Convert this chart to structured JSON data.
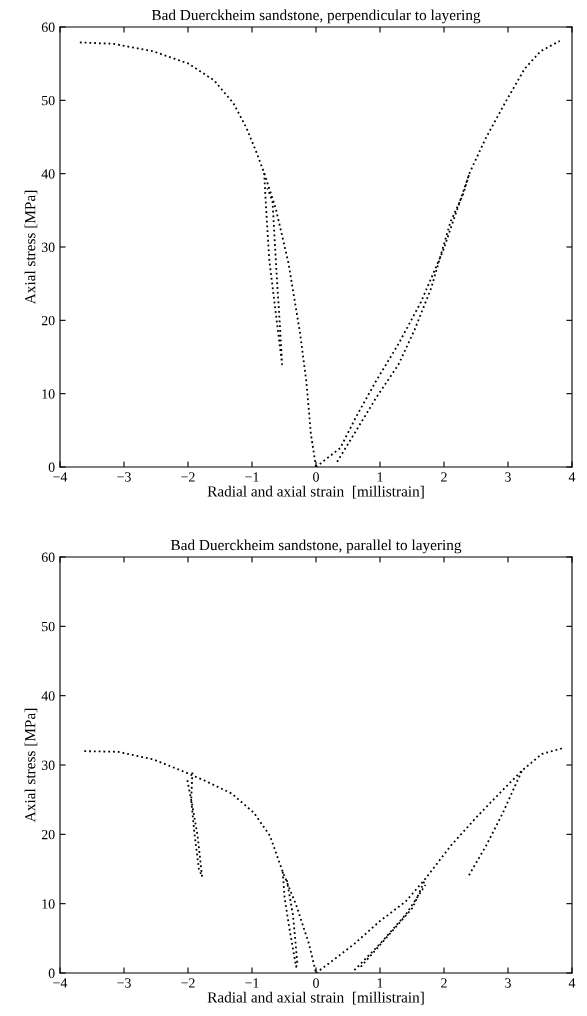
{
  "chart_data": [
    {
      "type": "line",
      "title": "Bad Duerckheim sandstone, perpendicular to layering",
      "xlabel": "Radial and axial strain  [millistrain]",
      "ylabel": "Axial stress [MPa]",
      "line_style": "dotted",
      "marker": "none",
      "grid": false,
      "legend": false,
      "xlim": [
        -4,
        4
      ],
      "ylim": [
        0,
        60
      ],
      "xticks": [
        {
          "value": -4,
          "label": "−4"
        },
        {
          "value": -3,
          "label": "−3"
        },
        {
          "value": -2,
          "label": "−2"
        },
        {
          "value": -1,
          "label": "−1"
        },
        0,
        1,
        2,
        3,
        4
      ],
      "yticks": [
        0,
        10,
        20,
        30,
        40,
        50,
        60
      ],
      "series": [
        {
          "color": "#000000",
          "x": [
            -3.69,
            -3.16,
            -2.55,
            -1.99,
            -1.59,
            -1.29,
            -1.09,
            -0.93,
            -0.81,
            -0.63,
            -0.43,
            -0.25,
            -0.15,
            -0.08,
            0
          ],
          "values": [
            57.9,
            57.7,
            56.7,
            55.0,
            52.7,
            49.6,
            46.3,
            42.9,
            40.1,
            35.3,
            27.8,
            18.3,
            11.6,
            4.5,
            0
          ]
        },
        {
          "color": "#000000",
          "x": [
            -0.81,
            -0.78,
            -0.73,
            -0.63,
            -0.53,
            -0.56,
            -0.62,
            -0.68,
            -0.76
          ],
          "values": [
            40.1,
            35.3,
            28.2,
            21.1,
            14.0,
            18.7,
            27.0,
            36.3,
            38.0
          ]
        },
        {
          "color": "#000000",
          "x": [
            0,
            0.38,
            0.63,
            0.93,
            1.29,
            1.64,
            1.99,
            2.4,
            2.65,
            2.95,
            3.26,
            3.51,
            3.81
          ],
          "values": [
            0,
            2.6,
            6.9,
            11.6,
            16.8,
            22.5,
            29.6,
            40.1,
            44.8,
            49.6,
            54.3,
            56.7,
            58.1
          ]
        },
        {
          "color": "#000000",
          "x": [
            0.33,
            0.63,
            0.93,
            1.29,
            1.54,
            1.8,
            2.1,
            2.3,
            2.4
          ],
          "values": [
            0.7,
            5.0,
            9.3,
            14.0,
            18.7,
            24.4,
            33.4,
            37.2,
            40.1
          ]
        }
      ]
    },
    {
      "type": "line",
      "title": "Bad Duerckheim sandstone, parallel to layering",
      "xlabel": "Radial and axial strain  [millistrain]",
      "ylabel": "Axial stress [MPa]",
      "line_style": "dotted",
      "marker": "none",
      "grid": false,
      "legend": false,
      "xlim": [
        -4,
        4
      ],
      "ylim": [
        0,
        60
      ],
      "xticks": [
        {
          "value": -4,
          "label": "−4"
        },
        {
          "value": -3,
          "label": "−3"
        },
        {
          "value": -2,
          "label": "−2"
        },
        {
          "value": -1,
          "label": "−1"
        },
        0,
        1,
        2,
        3,
        4
      ],
      "yticks": [
        0,
        10,
        20,
        30,
        40,
        50,
        60
      ],
      "series": [
        {
          "color": "#000000",
          "x": [
            -3.62,
            -3.09,
            -2.54,
            -2.08,
            -1.73,
            -1.32,
            -0.97,
            -0.72,
            -0.52,
            -0.31,
            -0.11,
            0
          ],
          "values": [
            32.0,
            31.9,
            30.8,
            29.1,
            27.7,
            25.9,
            23.1,
            19.8,
            14.6,
            9.8,
            4.2,
            0
          ]
        },
        {
          "color": "#000000",
          "x": [
            -2.01,
            -1.93,
            -1.85,
            -1.78,
            -1.83,
            -1.9,
            -1.95,
            -1.93
          ],
          "values": [
            27.8,
            24.0,
            19.8,
            13.9,
            15.0,
            20.2,
            24.9,
            29.3
          ]
        },
        {
          "color": "#000000",
          "x": [
            -0.52,
            -0.49,
            -0.41,
            -0.31,
            -0.29,
            -0.36,
            -0.46
          ],
          "values": [
            14.6,
            10.8,
            6.1,
            0.9,
            1.3,
            8.4,
            13.6
          ]
        },
        {
          "color": "#000000",
          "x": [
            0,
            0.19,
            0.6,
            1.0,
            1.4,
            1.71,
            2.11,
            2.52,
            2.92,
            3.22,
            3.53,
            3.85
          ],
          "values": [
            0,
            1.3,
            4.2,
            7.5,
            10.3,
            13.6,
            18.4,
            22.6,
            26.4,
            29.2,
            31.6,
            32.4
          ]
        },
        {
          "color": "#000000",
          "x": [
            0.6,
            1.0,
            1.4,
            1.71
          ],
          "values": [
            0.4,
            4.2,
            8.4,
            12.7
          ]
        },
        {
          "color": "#000000",
          "x": [
            0.7,
            1.1,
            1.51,
            1.71
          ],
          "values": [
            0.9,
            5.1,
            9.4,
            13.6
          ]
        },
        {
          "color": "#000000",
          "x": [
            2.39,
            2.66,
            2.92,
            3.13,
            3.22
          ],
          "values": [
            14.1,
            18.4,
            23.1,
            27.4,
            29.2
          ]
        }
      ]
    }
  ]
}
